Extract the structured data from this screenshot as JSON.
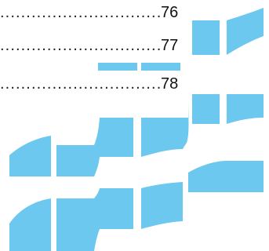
{
  "toc": {
    "entries": [
      {
        "dots": "........................................................",
        "page": "76"
      },
      {
        "dots": "........................................................",
        "page": "77"
      },
      {
        "dots": "........................................................",
        "page": "78"
      }
    ]
  },
  "decoration": {
    "color": "#6cc8ee",
    "shape": "wave-tiles"
  }
}
